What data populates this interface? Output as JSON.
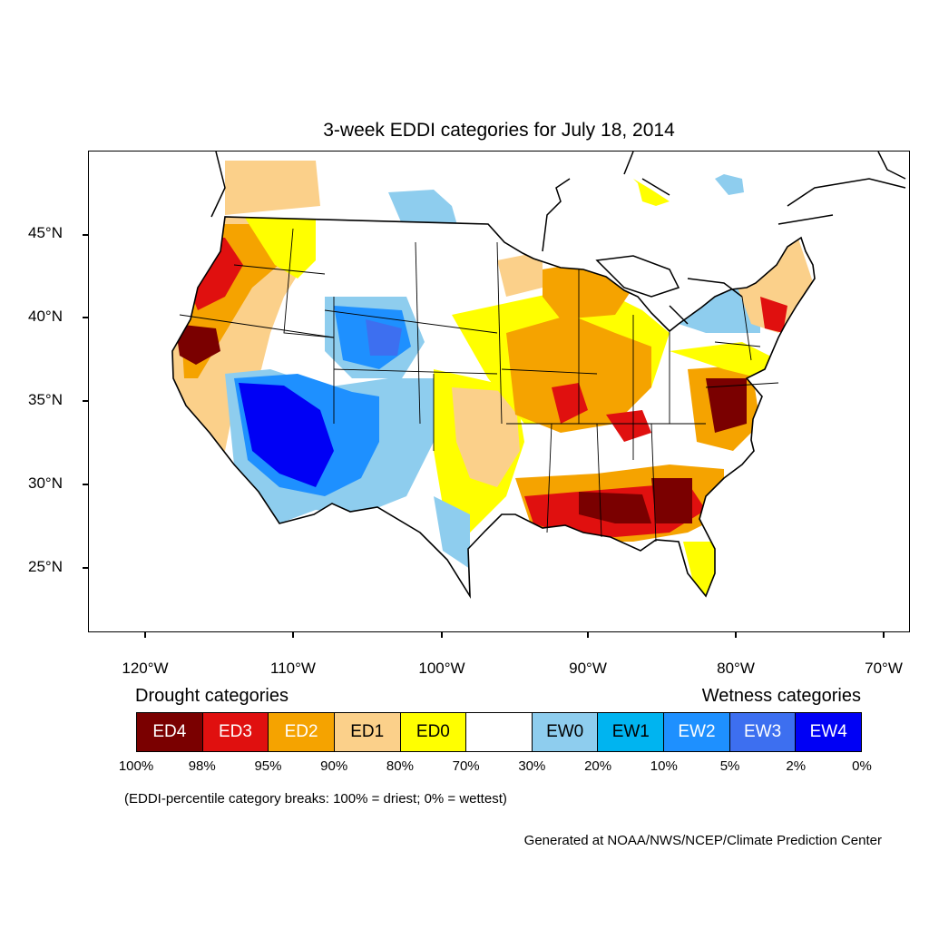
{
  "title": "3-week EDDI categories for July 18, 2014",
  "map": {
    "lat_ticks": [
      "45°N",
      "40°N",
      "35°N",
      "30°N",
      "25°N"
    ],
    "lon_ticks": [
      "120°W",
      "110°W",
      "100°W",
      "90°W",
      "80°W",
      "70°W"
    ],
    "colors": {
      "ED4": "#7a0000",
      "ED3": "#e0100f",
      "ED2": "#f5a300",
      "ED1": "#fbd08a",
      "ED0": "#ffff00",
      "neutral": "#ffffff",
      "EW0": "#8ecdee",
      "EW1": "#00b4f0",
      "EW2": "#1e90ff",
      "EW3": "#3d6ff0",
      "EW4": "#0000f5"
    }
  },
  "legend": {
    "drought_heading": "Drought categories",
    "wetness_heading": "Wetness categories",
    "categories": [
      {
        "label": "ED4",
        "color": "#7a0000",
        "text_color": "#ffffff"
      },
      {
        "label": "ED3",
        "color": "#e0100f",
        "text_color": "#ffffff"
      },
      {
        "label": "ED2",
        "color": "#f5a300",
        "text_color": "#ffffff"
      },
      {
        "label": "ED1",
        "color": "#fbd08a",
        "text_color": "#000000"
      },
      {
        "label": "ED0",
        "color": "#ffff00",
        "text_color": "#000000"
      },
      {
        "label": "",
        "color": "#ffffff",
        "text_color": "#000000"
      },
      {
        "label": "EW0",
        "color": "#8ecdee",
        "text_color": "#000000"
      },
      {
        "label": "EW1",
        "color": "#00b4f0",
        "text_color": "#000000"
      },
      {
        "label": "EW2",
        "color": "#1e90ff",
        "text_color": "#ffffff"
      },
      {
        "label": "EW3",
        "color": "#3d6ff0",
        "text_color": "#ffffff"
      },
      {
        "label": "EW4",
        "color": "#0000f5",
        "text_color": "#ffffff"
      }
    ],
    "percentile_breaks": [
      "100%",
      "98%",
      "95%",
      "90%",
      "80%",
      "70%",
      "30%",
      "20%",
      "10%",
      "5%",
      "2%",
      "0%"
    ]
  },
  "note": "(EDDI-percentile category breaks: 100% = driest; 0% = wettest)",
  "credit": "Generated at NOAA/NWS/NCEP/Climate Prediction Center"
}
